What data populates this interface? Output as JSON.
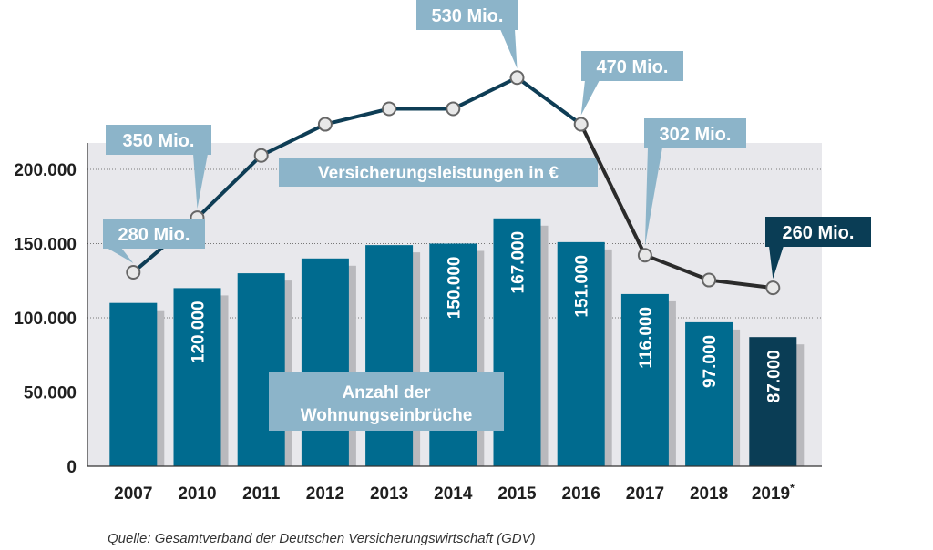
{
  "chart_data": {
    "type": "bar",
    "categories": [
      "2007",
      "2010",
      "2011",
      "2012",
      "2013",
      "2014",
      "2015",
      "2016",
      "2017",
      "2018",
      "2019"
    ],
    "category_note": {
      "2019": "*"
    },
    "ylim": [
      0,
      220000
    ],
    "yticks": [
      {
        "value": 0,
        "label": "0"
      },
      {
        "value": 50000,
        "label": "50.000"
      },
      {
        "value": 100000,
        "label": "100.000"
      },
      {
        "value": 150000,
        "label": "150.000"
      },
      {
        "value": 200000,
        "label": "200.000"
      }
    ],
    "series": [
      {
        "name": "Anzahl der Wohnungseinbrüche",
        "type": "bar",
        "values": [
          110000,
          120000,
          130000,
          140000,
          149000,
          150000,
          167000,
          151000,
          116000,
          97000,
          87000
        ],
        "labels": [
          "",
          "120.000",
          "",
          "",
          "",
          "150.000",
          "167.000",
          "151.000",
          "116.000",
          "97.000",
          "87.000"
        ],
        "colors": {
          "default": "#006b8f",
          "highlight": "#0a3d55",
          "shadow": "#b9b9bd"
        },
        "highlight_category": "2019"
      },
      {
        "name": "Versicherungsleistungen in €",
        "type": "line",
        "unit": "Mio. €",
        "values": [
          280,
          350,
          430,
          470,
          490,
          490,
          530,
          470,
          302,
          270,
          260
        ],
        "callouts": [
          {
            "category": "2007",
            "label": "280 Mio."
          },
          {
            "category": "2010",
            "label": "350 Mio."
          },
          {
            "category": "2015",
            "label": "530 Mio."
          },
          {
            "category": "2016",
            "label": "470 Mio."
          },
          {
            "category": "2017",
            "label": "302 Mio."
          },
          {
            "category": "2019",
            "label": "260 Mio."
          }
        ],
        "colors": {
          "line": "#0e3d55",
          "line_late": "#2b2b2b",
          "marker_fill": "#e8e8e8",
          "marker_stroke": "#666666"
        }
      }
    ],
    "legend": {
      "bars": [
        "Anzahl der",
        "Wohnungseinbrüche"
      ],
      "line": "Versicherungsleistungen in €",
      "color": "#8cb4c9"
    },
    "callout_colors": {
      "default": "#8cb4c9",
      "highlight": "#0a3d55"
    },
    "plot_background": "#e8e8ec",
    "grid": true
  },
  "source": "Quelle: Gesamtverband der Deutschen Versicherungswirtschaft (GDV)"
}
